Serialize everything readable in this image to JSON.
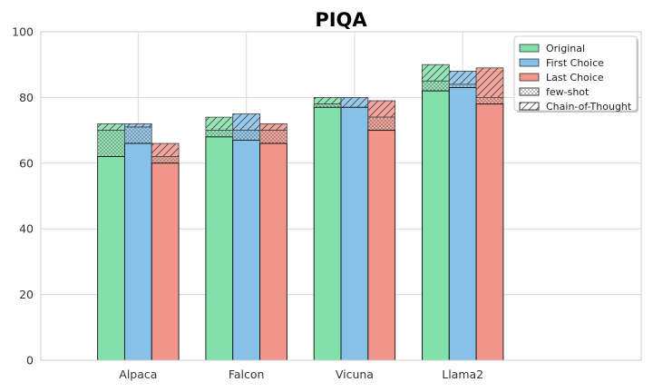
{
  "chart_data": {
    "type": "bar",
    "title": "PIQA",
    "xlabel": "",
    "ylabel": "",
    "ylim": [
      0,
      100
    ],
    "yticks": [
      0,
      20,
      40,
      60,
      80,
      100
    ],
    "grid": true,
    "legend_position": "top-right",
    "categories": [
      "Alpaca",
      "Falcon",
      "Vicuna",
      "Llama2"
    ],
    "series": [
      {
        "name": "Original",
        "color": "#82e0aa",
        "base": [
          62,
          68,
          77,
          82
        ],
        "few_shot": [
          70,
          70,
          78,
          85
        ],
        "chain_of_thought": [
          72,
          74,
          80,
          90
        ]
      },
      {
        "name": "First Choice",
        "color": "#85c1e9",
        "base": [
          66,
          67,
          77,
          83
        ],
        "few_shot": [
          71,
          70,
          77,
          84
        ],
        "chain_of_thought": [
          72,
          75,
          80,
          88
        ]
      },
      {
        "name": "Last Choice",
        "color": "#f1948a",
        "base": [
          60,
          66,
          70,
          78
        ],
        "few_shot": [
          62,
          70,
          74,
          80
        ],
        "chain_of_thought": [
          66,
          72,
          79,
          89
        ]
      }
    ],
    "legend": [
      "Original",
      "First Choice",
      "Last Choice",
      "few-shot",
      "Chain-of-Thought"
    ]
  }
}
